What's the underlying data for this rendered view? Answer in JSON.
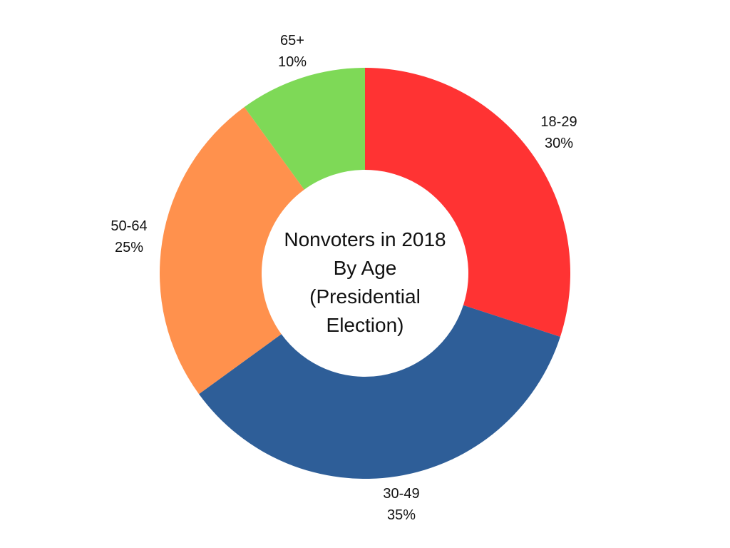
{
  "chart_data": {
    "type": "pie",
    "variant": "donut",
    "title_lines": [
      "Nonvoters in 2018",
      "By Age",
      "(Presidential",
      "Election)"
    ],
    "slices": [
      {
        "label": "18-29",
        "value": 30,
        "value_label": "30%",
        "color": "#ff3333"
      },
      {
        "label": "30-49",
        "value": 35,
        "value_label": "35%",
        "color": "#2e5e98"
      },
      {
        "label": "50-64",
        "value": 25,
        "value_label": "25%",
        "color": "#ff914d"
      },
      {
        "label": "65+",
        "value": 10,
        "value_label": "10%",
        "color": "#7ed957"
      }
    ],
    "start_angle": "12 o'clock",
    "direction": "clockwise",
    "legend": "none (labels outside slices)"
  }
}
